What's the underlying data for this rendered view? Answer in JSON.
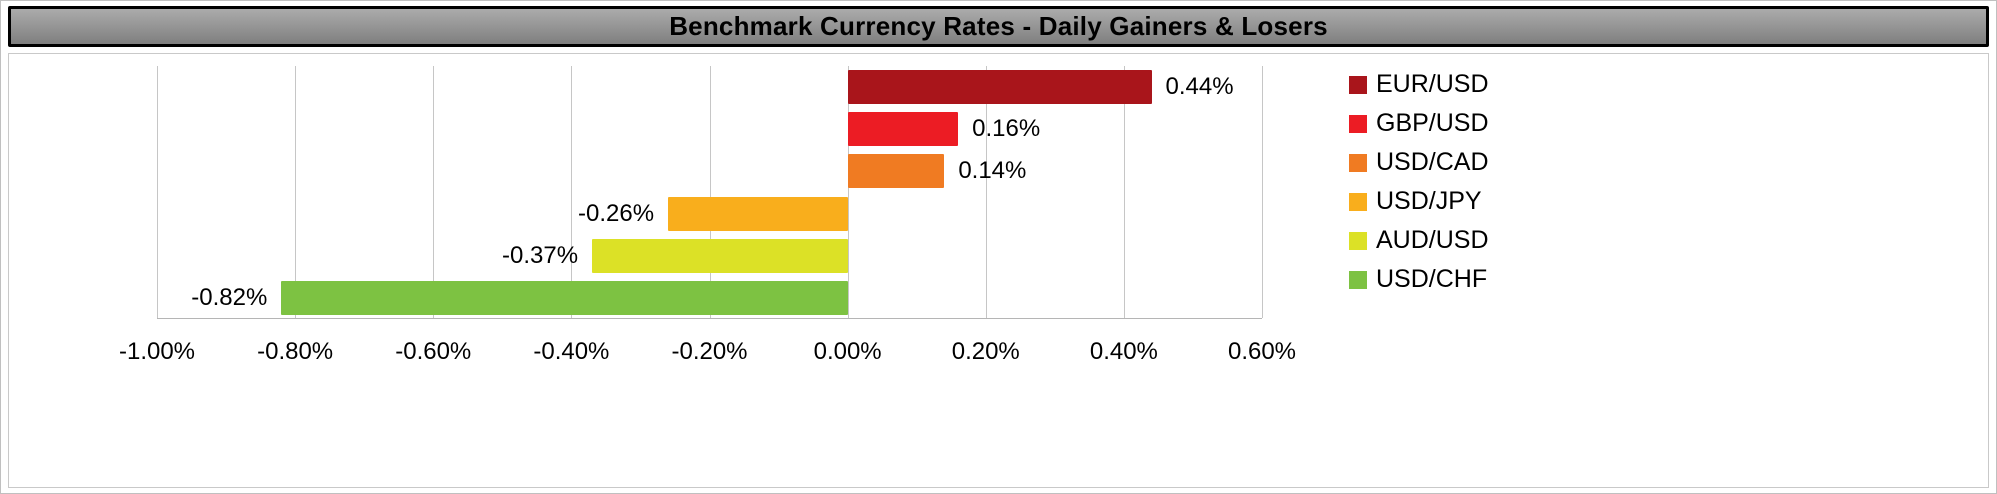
{
  "title": "Benchmark Currency Rates - Daily Gainers & Losers",
  "chart_data": {
    "type": "bar",
    "orientation": "horizontal",
    "title": "Benchmark Currency Rates - Daily Gainers & Losers",
    "categories": [
      "EUR/USD",
      "GBP/USD",
      "USD/CAD",
      "USD/JPY",
      "AUD/USD",
      "USD/CHF"
    ],
    "values": [
      0.44,
      0.16,
      0.14,
      -0.26,
      -0.37,
      -0.82
    ],
    "labels": [
      "0.44%",
      "0.16%",
      "0.14%",
      "-0.26%",
      "-0.37%",
      "-0.82%"
    ],
    "colors": [
      "#A9151B",
      "#EC1C24",
      "#F07B22",
      "#F9AE1C",
      "#DCE126",
      "#7DC242"
    ],
    "xlim": [
      -1.0,
      0.6
    ],
    "xticks": [
      -1.0,
      -0.8,
      -0.6,
      -0.4,
      -0.2,
      0.0,
      0.2,
      0.4,
      0.6
    ],
    "xtick_labels": [
      "-1.00%",
      "-0.80%",
      "-0.60%",
      "-0.40%",
      "-0.20%",
      "0.00%",
      "0.20%",
      "0.40%",
      "0.60%"
    ],
    "grid": true,
    "legend_position": "right"
  }
}
